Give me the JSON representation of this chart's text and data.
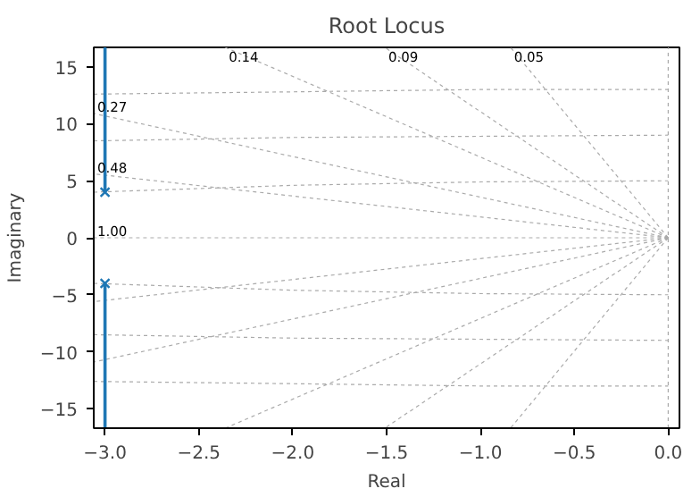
{
  "chart_data": {
    "type": "line",
    "title": "Root Locus",
    "xlabel": "Real",
    "ylabel": "Imaginary",
    "xlim": [
      -3.06,
      0.06
    ],
    "ylim": [
      -16.7,
      16.7
    ],
    "xticks": [
      {
        "value": -3,
        "label": "−3.0"
      },
      {
        "value": -2.5,
        "label": "−2.5"
      },
      {
        "value": -2,
        "label": "−2.0"
      },
      {
        "value": -1.5,
        "label": "−1.5"
      },
      {
        "value": -1,
        "label": "−1.0"
      },
      {
        "value": -0.5,
        "label": "−0.5"
      },
      {
        "value": 0,
        "label": "0.0"
      }
    ],
    "yticks": [
      {
        "value": -15,
        "label": "−15"
      },
      {
        "value": -10,
        "label": "−10"
      },
      {
        "value": -5,
        "label": "−5"
      },
      0,
      5,
      10,
      15
    ],
    "grid": false,
    "series": [
      {
        "line_style": "dotted",
        "color": "#aaaaaa",
        "x": [
          0,
          -0.84
        ],
        "values": [
          0,
          16.7
        ]
      },
      {
        "line_style": "dotted",
        "color": "#aaaaaa",
        "x": [
          0,
          -1.51
        ],
        "values": [
          0,
          16.7
        ]
      },
      {
        "line_style": "dotted",
        "color": "#aaaaaa",
        "x": [
          0,
          -2.36
        ],
        "values": [
          0,
          16.7
        ]
      },
      {
        "line_style": "dotted",
        "color": "#aaaaaa",
        "x": [
          0,
          -3.06
        ],
        "values": [
          0,
          10.9
        ]
      },
      {
        "line_style": "dotted",
        "color": "#aaaaaa",
        "x": [
          0,
          -3.06
        ],
        "values": [
          0,
          5.6
        ]
      },
      {
        "line_style": "dotted",
        "color": "#aaaaaa",
        "x": [
          0,
          -3.06
        ],
        "values": [
          0,
          0
        ]
      },
      {
        "line_style": "dotted",
        "color": "#aaaaaa",
        "x": [
          0,
          -3.06
        ],
        "values": [
          0,
          -5.6
        ]
      },
      {
        "line_style": "dotted",
        "color": "#aaaaaa",
        "x": [
          0,
          -3.06
        ],
        "values": [
          0,
          -10.9
        ]
      },
      {
        "line_style": "dotted",
        "color": "#aaaaaa",
        "x": [
          0,
          -2.36
        ],
        "values": [
          0,
          -16.7
        ]
      },
      {
        "line_style": "dotted",
        "color": "#aaaaaa",
        "x": [
          0,
          -1.51
        ],
        "values": [
          0,
          -16.7
        ]
      },
      {
        "line_style": "dotted",
        "color": "#aaaaaa",
        "x": [
          0,
          -0.84
        ],
        "values": [
          0,
          -16.7
        ]
      },
      {
        "line_style": "dotted",
        "color": "#aaaaaa",
        "x": [
          0,
          0
        ],
        "values": [
          -16.7,
          16.7
        ]
      },
      {
        "line_style": "dotted",
        "color": "#aaaaaa",
        "x": [
          -3.06,
          -2,
          -1,
          0
        ],
        "values": [
          4,
          4.6,
          4.9,
          5
        ]
      },
      {
        "line_style": "dotted",
        "color": "#aaaaaa",
        "x": [
          -3.06,
          -2,
          -1,
          0
        ],
        "values": [
          8.5,
          8.8,
          8.9,
          9
        ]
      },
      {
        "line_style": "dotted",
        "color": "#aaaaaa",
        "x": [
          -3.06,
          -2,
          -1,
          0
        ],
        "values": [
          12.6,
          12.8,
          13,
          13
        ]
      },
      {
        "line_style": "dotted",
        "color": "#aaaaaa",
        "x": [
          -3.06,
          -2,
          -1,
          0
        ],
        "values": [
          -4,
          -4.6,
          -4.9,
          -5
        ]
      },
      {
        "line_style": "dotted",
        "color": "#aaaaaa",
        "x": [
          -3.06,
          -2,
          -1,
          0
        ],
        "values": [
          -8.5,
          -8.8,
          -8.9,
          -9
        ]
      },
      {
        "line_style": "dotted",
        "color": "#aaaaaa",
        "x": [
          -3.06,
          -2,
          -1,
          0
        ],
        "values": [
          -12.6,
          -12.8,
          -13,
          -13
        ]
      },
      {
        "line_style": "solid",
        "color": "#1f77b4",
        "x": [
          -3,
          -3
        ],
        "values": [
          4,
          16.7
        ]
      },
      {
        "line_style": "solid",
        "color": "#1f77b4",
        "x": [
          -3,
          -3
        ],
        "values": [
          -4,
          -16.7
        ]
      },
      {
        "type": "scatter",
        "marker": "cross",
        "color": "#1f77b4",
        "x": [
          -3,
          -3
        ],
        "values": [
          4,
          -4
        ]
      }
    ],
    "annotations": [
      {
        "text": "0.14",
        "x": -2.36,
        "y": 16.7
      },
      {
        "text": "0.09",
        "x": -1.51,
        "y": 16.7
      },
      {
        "text": "0.05",
        "x": -0.84,
        "y": 16.7
      },
      {
        "text": "0.27",
        "x": -3.06,
        "y": 10.9
      },
      {
        "text": "0.48",
        "x": -3.06,
        "y": 5.6
      },
      {
        "text": "1.00",
        "x": -3.06,
        "y": 0
      }
    ]
  }
}
